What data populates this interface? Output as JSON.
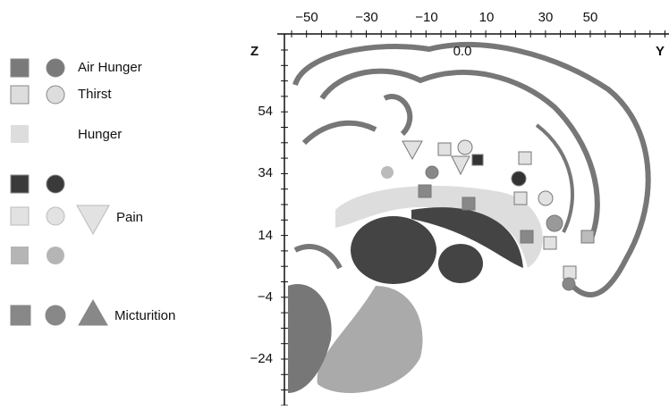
{
  "figure": {
    "axis_z": "Z",
    "axis_y": "Y",
    "top_ticks": [
      "−50",
      "−30",
      "−10",
      "10",
      "30",
      "50"
    ],
    "origin": "0.0",
    "left_ticks": [
      "54",
      "34",
      "14",
      "−4",
      "−24"
    ],
    "legend": [
      "Air Hunger",
      "Thirst",
      "Hunger",
      "Pain",
      "Micturition"
    ]
  }
}
